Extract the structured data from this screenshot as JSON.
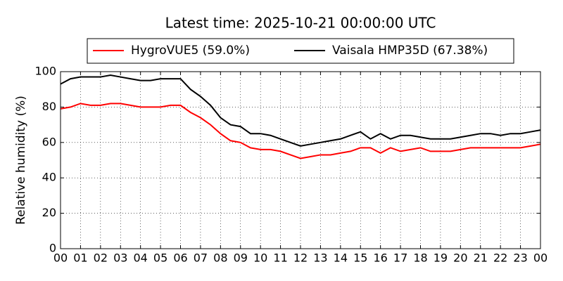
{
  "chart_data": {
    "type": "line",
    "title": "Latest time: 2025-10-21 00:00:00 UTC",
    "y_label": "Relative humidity (%)",
    "x": [
      0,
      0.5,
      1,
      1.5,
      2,
      2.5,
      3,
      3.5,
      4,
      4.5,
      5,
      5.5,
      6,
      6.5,
      7,
      7.5,
      8,
      8.5,
      9,
      9.5,
      10,
      10.5,
      11,
      11.5,
      12,
      12.5,
      13,
      13.5,
      14,
      14.5,
      15,
      15.5,
      16,
      16.5,
      17,
      17.5,
      18,
      18.5,
      19,
      19.5,
      20,
      20.5,
      21,
      21.5,
      22,
      22.5,
      23,
      23.5,
      24
    ],
    "series": [
      {
        "name": "HygroVUE5 (59.0%)",
        "color": "#ff0000",
        "values": [
          79,
          80,
          82,
          81,
          81,
          82,
          82,
          81,
          80,
          80,
          80,
          81,
          81,
          77,
          74,
          70,
          65,
          61,
          60,
          57,
          56,
          56,
          55,
          53,
          51,
          52,
          53,
          53,
          54,
          55,
          57,
          57,
          54,
          57,
          55,
          56,
          57,
          55,
          55,
          55,
          56,
          57,
          57,
          57,
          57,
          57,
          57,
          58,
          59
        ]
      },
      {
        "name": "Vaisala HMP35D (67.38%)",
        "color": "#000000",
        "values": [
          93,
          96,
          97,
          97,
          97,
          98,
          97,
          96,
          95,
          95,
          96,
          96,
          96,
          90,
          86,
          81,
          74,
          70,
          69,
          65,
          65,
          64,
          62,
          60,
          58,
          59,
          60,
          61,
          62,
          64,
          66,
          62,
          65,
          62,
          64,
          64,
          63,
          62,
          62,
          62,
          63,
          64,
          65,
          65,
          64,
          65,
          65,
          66,
          67
        ]
      }
    ],
    "xlim": [
      0,
      24
    ],
    "xticks": [
      {
        "value": 0,
        "label": "00"
      },
      {
        "value": 1,
        "label": "01"
      },
      {
        "value": 2,
        "label": "02"
      },
      {
        "value": 3,
        "label": "03"
      },
      {
        "value": 4,
        "label": "04"
      },
      {
        "value": 5,
        "label": "05"
      },
      {
        "value": 6,
        "label": "06"
      },
      {
        "value": 7,
        "label": "07"
      },
      {
        "value": 8,
        "label": "08"
      },
      {
        "value": 9,
        "label": "09"
      },
      {
        "value": 10,
        "label": "10"
      },
      {
        "value": 11,
        "label": "11"
      },
      {
        "value": 12,
        "label": "12"
      },
      {
        "value": 13,
        "label": "13"
      },
      {
        "value": 14,
        "label": "14"
      },
      {
        "value": 15,
        "label": "15"
      },
      {
        "value": 16,
        "label": "16"
      },
      {
        "value": 17,
        "label": "17"
      },
      {
        "value": 18,
        "label": "18"
      },
      {
        "value": 19,
        "label": "19"
      },
      {
        "value": 20,
        "label": "20"
      },
      {
        "value": 21,
        "label": "21"
      },
      {
        "value": 22,
        "label": "22"
      },
      {
        "value": 23,
        "label": "23"
      },
      {
        "value": 24,
        "label": "00"
      }
    ],
    "ylim": [
      0,
      100
    ],
    "yticks": [
      0,
      20,
      40,
      60,
      80,
      100
    ],
    "grid": true,
    "legend": "top"
  }
}
